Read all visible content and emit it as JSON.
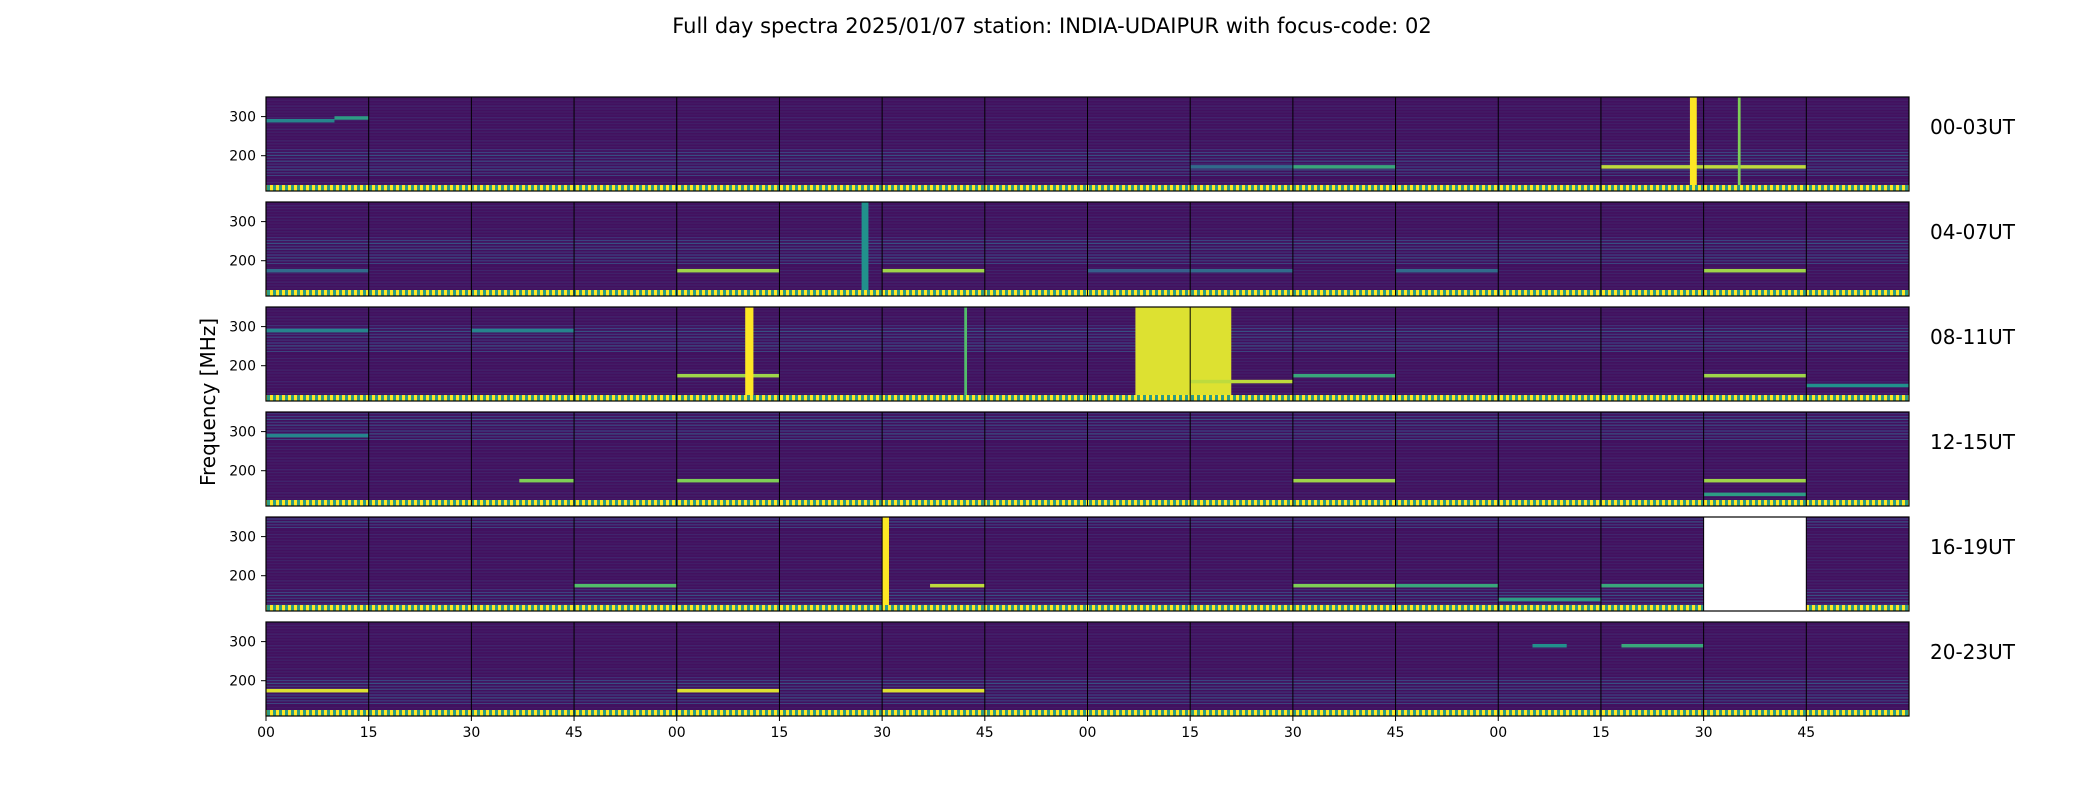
{
  "chart_data": {
    "type": "heatmap",
    "title": "Full day spectra 2025/01/07 station: INDIA-UDAIPUR with focus-code: 02",
    "ylabel": "Frequency [MHz]",
    "xlabel": "",
    "yticks": [
      "300",
      "200"
    ],
    "ytick_values": [
      300,
      200
    ],
    "ylim": [
      125,
      350
    ],
    "xtick_labels": [
      "00",
      "15",
      "30",
      "45",
      "00",
      "15",
      "30",
      "45",
      "00",
      "15",
      "30",
      "45",
      "00",
      "15",
      "30",
      "45"
    ],
    "row_labels": [
      "00-03UT",
      "04-07UT",
      "08-11UT",
      "12-15UT",
      "16-19UT",
      "20-23UT"
    ],
    "panels_per_row": 16,
    "panel_minutes": 15,
    "colormap": "viridis",
    "missing_panels": [
      {
        "row": 4,
        "panel": 14
      }
    ],
    "features": [
      {
        "row": 0,
        "panel": 0,
        "kind": "hline",
        "freq": 290,
        "minute_start": 0,
        "minute_end": 10,
        "level": 0.45
      },
      {
        "row": 0,
        "panel": 0,
        "kind": "hline",
        "freq": 297,
        "minute_start": 10,
        "minute_end": 15,
        "level": 0.55
      },
      {
        "row": 0,
        "panel": 9,
        "kind": "hline",
        "freq": 172,
        "minute_start": 0,
        "minute_end": 15,
        "level": 0.35
      },
      {
        "row": 0,
        "panel": 10,
        "kind": "hline",
        "freq": 172,
        "minute_start": 0,
        "minute_end": 15,
        "level": 0.6
      },
      {
        "row": 0,
        "panel": 13,
        "kind": "hline",
        "freq": 172,
        "minute_start": 0,
        "minute_end": 15,
        "level": 0.9
      },
      {
        "row": 0,
        "panel": 13,
        "kind": "vline",
        "minute": 13,
        "width": 1,
        "level": 1.0
      },
      {
        "row": 0,
        "panel": 14,
        "kind": "hline",
        "freq": 172,
        "minute_start": 0,
        "minute_end": 15,
        "level": 0.9
      },
      {
        "row": 0,
        "panel": 14,
        "kind": "vline",
        "minute": 5,
        "width": 0.4,
        "level": 0.8
      },
      {
        "row": 1,
        "panel": 0,
        "kind": "hline",
        "freq": 175,
        "minute_start": 0,
        "minute_end": 15,
        "level": 0.35
      },
      {
        "row": 1,
        "panel": 4,
        "kind": "hline",
        "freq": 175,
        "minute_start": 0,
        "minute_end": 15,
        "level": 0.85
      },
      {
        "row": 1,
        "panel": 5,
        "kind": "vline",
        "minute": 12,
        "width": 1,
        "level": 0.5
      },
      {
        "row": 1,
        "panel": 6,
        "kind": "hline",
        "freq": 175,
        "minute_start": 0,
        "minute_end": 15,
        "level": 0.85
      },
      {
        "row": 1,
        "panel": 8,
        "kind": "hline",
        "freq": 175,
        "minute_start": 0,
        "minute_end": 15,
        "level": 0.3
      },
      {
        "row": 1,
        "panel": 9,
        "kind": "hline",
        "freq": 175,
        "minute_start": 0,
        "minute_end": 15,
        "level": 0.35
      },
      {
        "row": 1,
        "panel": 11,
        "kind": "hline",
        "freq": 175,
        "minute_start": 0,
        "minute_end": 15,
        "level": 0.35
      },
      {
        "row": 1,
        "panel": 14,
        "kind": "hline",
        "freq": 175,
        "minute_start": 0,
        "minute_end": 15,
        "level": 0.85
      },
      {
        "row": 2,
        "panel": 0,
        "kind": "hline",
        "freq": 290,
        "minute_start": 0,
        "minute_end": 15,
        "level": 0.45
      },
      {
        "row": 2,
        "panel": 2,
        "kind": "hline",
        "freq": 290,
        "minute_start": 0,
        "minute_end": 15,
        "level": 0.45
      },
      {
        "row": 2,
        "panel": 4,
        "kind": "hline",
        "freq": 175,
        "minute_start": 0,
        "minute_end": 15,
        "level": 0.85
      },
      {
        "row": 2,
        "panel": 4,
        "kind": "vline",
        "minute": 10,
        "width": 1.2,
        "level": 1.0
      },
      {
        "row": 2,
        "panel": 6,
        "kind": "vline",
        "minute": 12,
        "width": 0.4,
        "level": 0.7
      },
      {
        "row": 2,
        "panel": 8,
        "kind": "block",
        "minute_start": 7,
        "minute_end": 15,
        "level": 0.95
      },
      {
        "row": 2,
        "panel": 9,
        "kind": "block",
        "minute_start": 0,
        "minute_end": 6,
        "level": 0.95
      },
      {
        "row": 2,
        "panel": 9,
        "kind": "hline",
        "freq": 160,
        "minute_start": 0,
        "minute_end": 15,
        "level": 0.9
      },
      {
        "row": 2,
        "panel": 10,
        "kind": "hline",
        "freq": 175,
        "minute_start": 0,
        "minute_end": 15,
        "level": 0.6
      },
      {
        "row": 2,
        "panel": 14,
        "kind": "hline",
        "freq": 175,
        "minute_start": 0,
        "minute_end": 15,
        "level": 0.85
      },
      {
        "row": 2,
        "panel": 15,
        "kind": "hline",
        "freq": 150,
        "minute_start": 0,
        "minute_end": 15,
        "level": 0.5
      },
      {
        "row": 3,
        "panel": 0,
        "kind": "hline",
        "freq": 290,
        "minute_start": 0,
        "minute_end": 15,
        "level": 0.45
      },
      {
        "row": 3,
        "panel": 2,
        "kind": "hline",
        "freq": 175,
        "minute_start": 7,
        "minute_end": 15,
        "level": 0.8
      },
      {
        "row": 3,
        "panel": 4,
        "kind": "hline",
        "freq": 175,
        "minute_start": 0,
        "minute_end": 15,
        "level": 0.8
      },
      {
        "row": 3,
        "panel": 10,
        "kind": "hline",
        "freq": 175,
        "minute_start": 0,
        "minute_end": 15,
        "level": 0.85
      },
      {
        "row": 3,
        "panel": 14,
        "kind": "hline",
        "freq": 175,
        "minute_start": 0,
        "minute_end": 15,
        "level": 0.85
      },
      {
        "row": 3,
        "panel": 14,
        "kind": "hline",
        "freq": 140,
        "minute_start": 0,
        "minute_end": 15,
        "level": 0.55
      },
      {
        "row": 4,
        "panel": 3,
        "kind": "hline",
        "freq": 175,
        "minute_start": 0,
        "minute_end": 15,
        "level": 0.7
      },
      {
        "row": 4,
        "panel": 6,
        "kind": "vline",
        "minute": 0,
        "width": 1,
        "level": 1.0
      },
      {
        "row": 4,
        "panel": 6,
        "kind": "hline",
        "freq": 175,
        "minute_start": 7,
        "minute_end": 15,
        "level": 0.9
      },
      {
        "row": 4,
        "panel": 10,
        "kind": "hline",
        "freq": 175,
        "minute_start": 0,
        "minute_end": 15,
        "level": 0.8
      },
      {
        "row": 4,
        "panel": 11,
        "kind": "hline",
        "freq": 175,
        "minute_start": 0,
        "minute_end": 15,
        "level": 0.6
      },
      {
        "row": 4,
        "panel": 12,
        "kind": "hline",
        "freq": 140,
        "minute_start": 0,
        "minute_end": 15,
        "level": 0.55
      },
      {
        "row": 4,
        "panel": 13,
        "kind": "hline",
        "freq": 175,
        "minute_start": 0,
        "minute_end": 15,
        "level": 0.6
      },
      {
        "row": 5,
        "panel": 0,
        "kind": "hline",
        "freq": 175,
        "minute_start": 0,
        "minute_end": 15,
        "level": 0.95
      },
      {
        "row": 5,
        "panel": 4,
        "kind": "hline",
        "freq": 175,
        "minute_start": 0,
        "minute_end": 15,
        "level": 0.95
      },
      {
        "row": 5,
        "panel": 6,
        "kind": "hline",
        "freq": 175,
        "minute_start": 0,
        "minute_end": 15,
        "level": 0.95
      },
      {
        "row": 5,
        "panel": 12,
        "kind": "hline",
        "freq": 290,
        "minute_start": 5,
        "minute_end": 10,
        "level": 0.5
      },
      {
        "row": 5,
        "panel": 13,
        "kind": "hline",
        "freq": 290,
        "minute_start": 3,
        "minute_end": 15,
        "level": 0.6
      }
    ]
  }
}
